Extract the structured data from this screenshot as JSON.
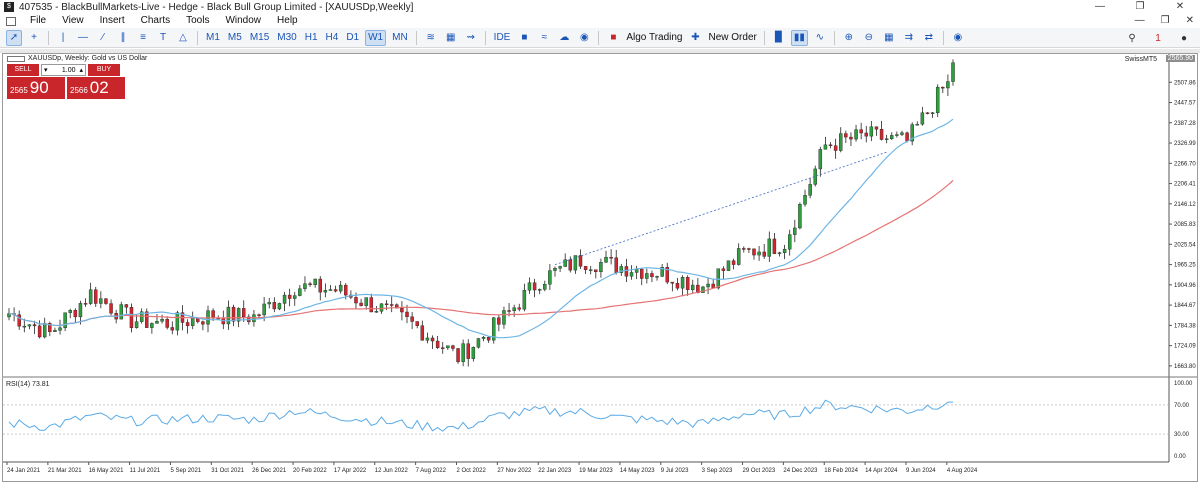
{
  "window": {
    "title": "407535 - BlackBullMarkets-Live - Hedge - Black Bull Group Limited - [XAUUSDp,Weekly]",
    "app_icon": "$"
  },
  "menu": {
    "items": [
      "File",
      "View",
      "Insert",
      "Charts",
      "Tools",
      "Window",
      "Help"
    ]
  },
  "toolbar": {
    "timeframes": [
      "M1",
      "M5",
      "M15",
      "M30",
      "H1",
      "H4",
      "D1",
      "W1",
      "MN"
    ],
    "active_timeframe": "W1",
    "ide_label": "IDE",
    "algo_trading_label": "Algo Trading",
    "new_order_label": "New Order",
    "notification_count": "1"
  },
  "chart": {
    "header": "XAUUSDp, Weekly: Gold vs US Dollar",
    "broker": "SwissMT5",
    "current_price_badge": "2565.90",
    "trade_panel": {
      "sell_label": "SELL",
      "buy_label": "BUY",
      "lot": "1.00",
      "sell_small": "2565",
      "sell_big": "90",
      "buy_small": "2566",
      "buy_big": "02"
    },
    "price_ticks": [
      "2507.86",
      "2447.57",
      "2387.28",
      "2326.99",
      "2266.70",
      "2206.41",
      "2146.12",
      "2085.83",
      "2025.54",
      "1965.25",
      "1904.96",
      "1844.67",
      "1784.38",
      "1724.09",
      "1663.80"
    ],
    "rsi_label": "RSI(14) 73.81",
    "rsi_ticks": [
      "100.00",
      "70.00",
      "30.00",
      "0.00"
    ],
    "date_ticks": [
      "24 Jan 2021",
      "21 Mar 2021",
      "16 May 2021",
      "11 Jul 2021",
      "5 Sep 2021",
      "31 Oct 2021",
      "26 Dec 2021",
      "20 Feb 2022",
      "17 Apr 2022",
      "12 Jun 2022",
      "7 Aug 2022",
      "2 Oct 2022",
      "27 Nov 2022",
      "22 Jan 2023",
      "19 Mar 2023",
      "14 May 2023",
      "9 Jul 2023",
      "3 Sep 2023",
      "29 Oct 2023",
      "24 Dec 2023",
      "18 Feb 2024",
      "14 Apr 2024",
      "9 Jun 2024",
      "4 Aug 2024"
    ],
    "colors": {
      "bull": "#2e9e3e",
      "bear": "#d0262d",
      "ma_fast": "#6fb6e6",
      "ma_slow": "#e57373",
      "rsi": "#5aaae6",
      "trendline": "#3c68c8"
    }
  },
  "chart_data": {
    "type": "line",
    "title": "XAUUSDp, Weekly: Gold vs US Dollar",
    "xlabel": "",
    "ylabel": "",
    "ylim": [
      1633.66,
      2568.15
    ],
    "x_range": [
      "24 Jan 2021",
      "25 Aug 2024"
    ],
    "series": [
      {
        "name": "",
        "x": [
          "24 Jan 2021",
          "21 Mar 2021",
          "16 May 2021",
          "11 Jul 2021",
          "5 Sep 2021",
          "31 Oct 2021",
          "26 Dec 2021",
          "20 Feb 2022",
          "17 Apr 2022",
          "12 Jun 2022",
          "7 Aug 2022",
          "2 Oct 2022",
          "27 Nov 2022",
          "22 Jan 2023",
          "19 Mar 2023",
          "14 May 2023",
          "9 Jul 2023",
          "3 Sep 2023",
          "29 Oct 2023",
          "24 Dec 2023",
          "18 Feb 2024",
          "14 Apr 2024",
          "9 Jun 2024",
          "4 Aug 2024"
        ],
        "values": [
          1820,
          1760,
          1880,
          1800,
          1790,
          1815,
          1810,
          1900,
          1890,
          1840,
          1780,
          1690,
          1790,
          1920,
          1980,
          1960,
          1940,
          1900,
          2000,
          2030,
          2320,
          2350,
          2330,
          2510
        ]
      }
    ],
    "rsi": {
      "name": "RSI(14)",
      "last": 73.81,
      "ylim": [
        0,
        100
      ],
      "levels": [
        70,
        30
      ],
      "x": [
        "24 Jan 2021",
        "21 Mar 2021",
        "16 May 2021",
        "11 Jul 2021",
        "5 Sep 2021",
        "31 Oct 2021",
        "26 Dec 2021",
        "20 Feb 2022",
        "17 Apr 2022",
        "12 Jun 2022",
        "7 Aug 2022",
        "2 Oct 2022",
        "27 Nov 2022",
        "22 Jan 2023",
        "19 Mar 2023",
        "14 May 2023",
        "9 Jul 2023",
        "3 Sep 2023",
        "29 Oct 2023",
        "24 Dec 2023",
        "18 Feb 2024",
        "14 Apr 2024",
        "9 Jun 2024",
        "4 Aug 2024"
      ],
      "values": [
        45,
        40,
        55,
        48,
        50,
        52,
        50,
        62,
        55,
        48,
        42,
        38,
        55,
        62,
        60,
        52,
        48,
        44,
        58,
        56,
        70,
        66,
        62,
        73.81
      ]
    }
  }
}
